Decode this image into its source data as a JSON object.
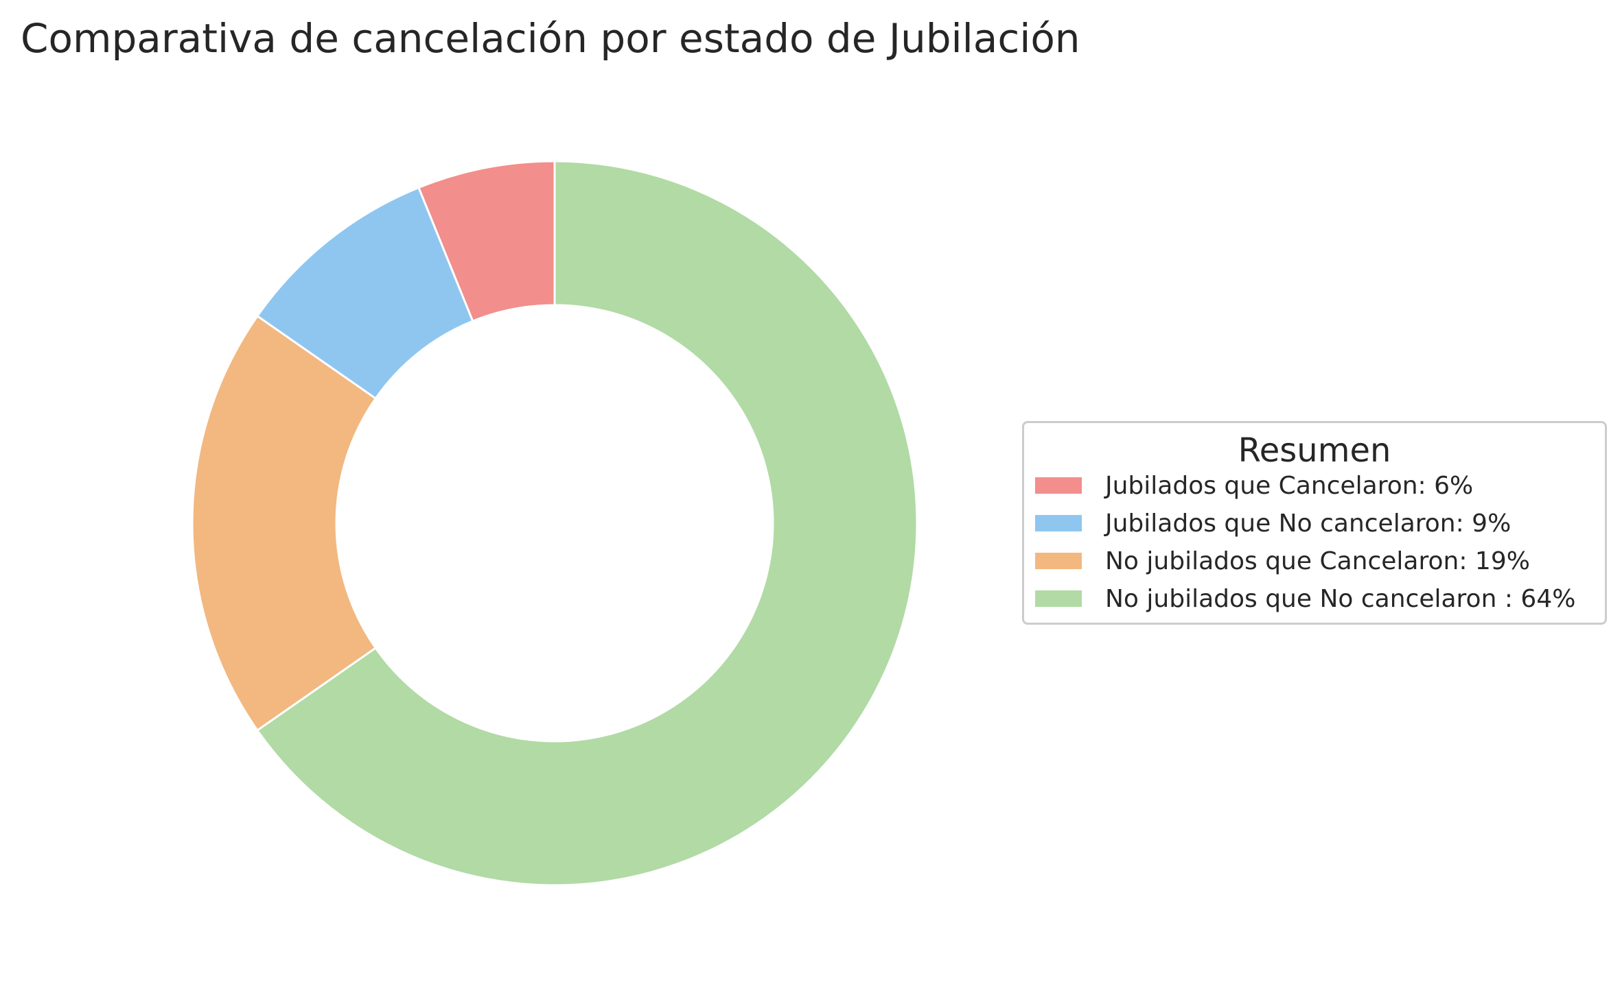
{
  "chart_data": {
    "type": "pie",
    "style": "donut",
    "title": "Comparativa de cancelación por estado de Jubilación",
    "legend": {
      "title": "Resumen",
      "placement": "center-right"
    },
    "slices": [
      {
        "label": "Jubilados que Cancelaron: 6%",
        "value": 6,
        "color": "#f28e8b"
      },
      {
        "label": "Jubilados que No cancelaron: 9%",
        "value": 9,
        "color": "#8fc6f0"
      },
      {
        "label": "No jubilados que Cancelaron: 19%",
        "value": 19,
        "color": "#f2b880"
      },
      {
        "label": "No jubilados que No cancelaron : 64%",
        "value": 64,
        "color": "#b1daa5"
      }
    ]
  }
}
